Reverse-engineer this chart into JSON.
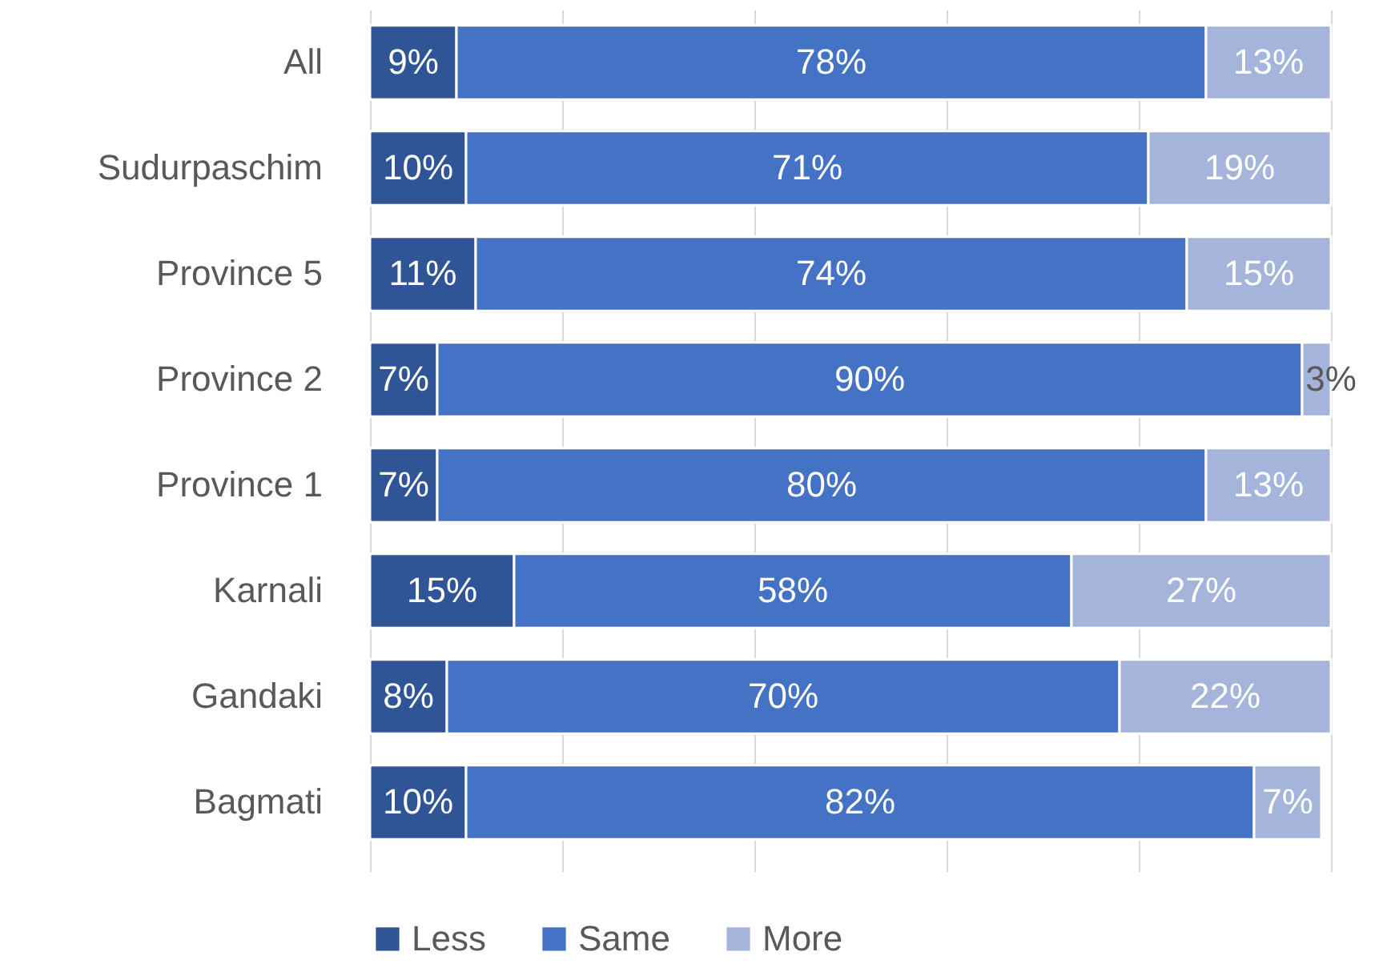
{
  "chart_data": {
    "type": "bar",
    "orientation": "horizontal",
    "stacked": true,
    "categories": [
      "All",
      "Sudurpaschim",
      "Province 5",
      "Province 2",
      "Province 1",
      "Karnali",
      "Gandaki",
      "Bagmati"
    ],
    "series": [
      {
        "name": "Less",
        "color": "#2f5597",
        "values": [
          9,
          10,
          11,
          7,
          7,
          15,
          8,
          10
        ],
        "value_labels": [
          "9%",
          "10%",
          "11%",
          "7%",
          "7%",
          "15%",
          "8%",
          "10%"
        ]
      },
      {
        "name": "Same",
        "color": "#4472c4",
        "values": [
          78,
          71,
          74,
          90,
          80,
          58,
          70,
          82
        ],
        "value_labels": [
          "78%",
          "71%",
          "74%",
          "90%",
          "80%",
          "58%",
          "70%",
          "82%"
        ]
      },
      {
        "name": "More",
        "color": "#a5b4db",
        "values": [
          13,
          19,
          15,
          3,
          13,
          27,
          22,
          7
        ],
        "value_labels": [
          "13%",
          "19%",
          "15%",
          "3%",
          "13%",
          "27%",
          "22%",
          "7%"
        ]
      }
    ],
    "xlim": [
      0,
      100
    ],
    "xticks": [
      {
        "value": 0,
        "label": null
      },
      {
        "value": 20,
        "label": null
      },
      {
        "value": 40,
        "label": null
      },
      {
        "value": 60,
        "label": null
      },
      {
        "value": 80,
        "label": null
      },
      {
        "value": 100,
        "label": null
      }
    ],
    "grid": "x",
    "tick_labels": "y",
    "legend": "bottom"
  }
}
